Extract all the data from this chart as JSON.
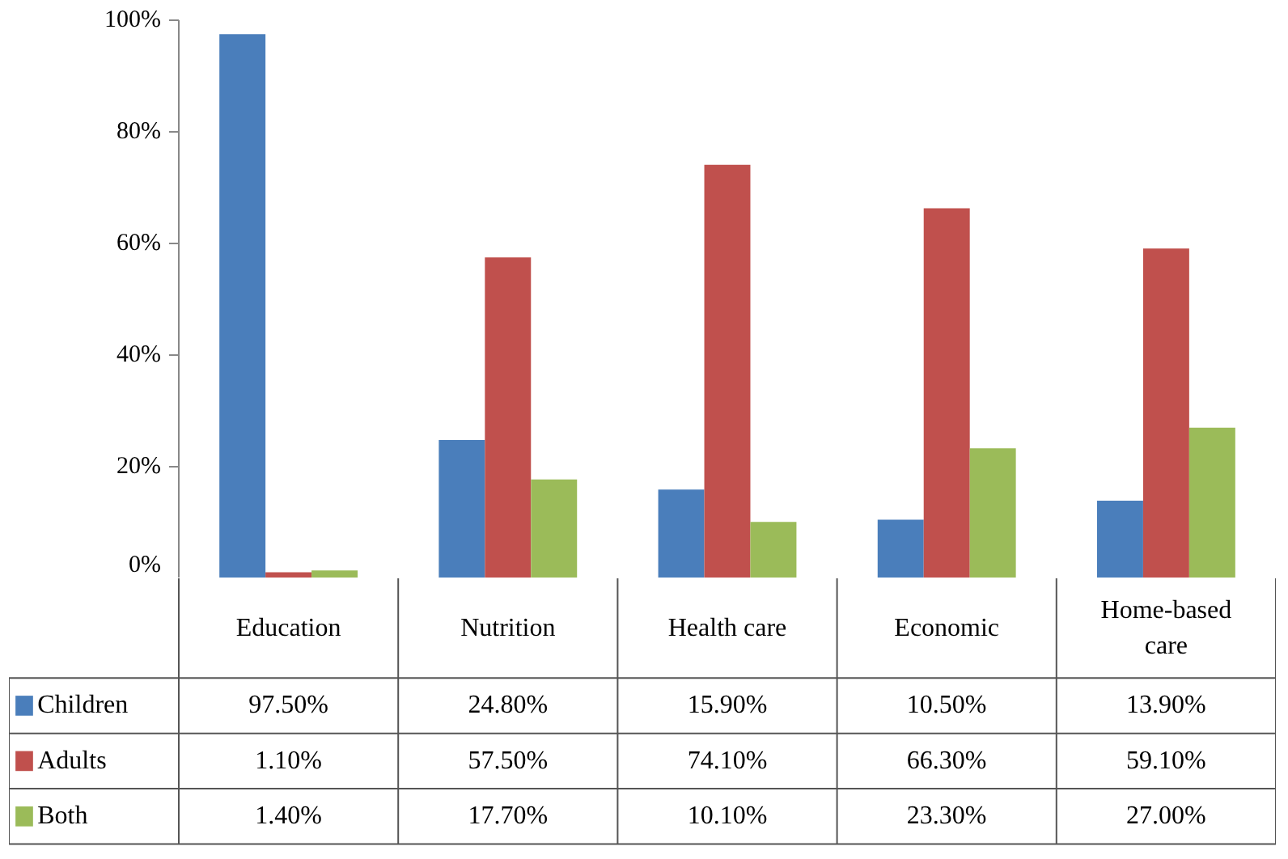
{
  "chart_data": {
    "type": "bar",
    "categories": [
      "Education",
      "Nutrition",
      "Health care",
      "Economic",
      "Home-based care"
    ],
    "ylim": [
      0,
      100
    ],
    "yticks": [
      {
        "value": 0,
        "label": "0%"
      },
      {
        "value": 20,
        "label": "20%"
      },
      {
        "value": 40,
        "label": "40%"
      },
      {
        "value": 60,
        "label": "60%"
      },
      {
        "value": 80,
        "label": "80%"
      },
      {
        "value": 100,
        "label": "100%"
      }
    ],
    "legend": "bottom",
    "series": [
      {
        "name": "Children",
        "color": "#4a7ebb",
        "values": [
          97.5,
          24.8,
          15.9,
          10.5,
          13.9
        ],
        "value_labels": [
          "97.50%",
          "24.80%",
          "15.90%",
          "10.50%",
          "13.90%"
        ]
      },
      {
        "name": "Adults",
        "color": "#c0504d",
        "values": [
          1.1,
          57.5,
          74.1,
          66.3,
          59.1
        ],
        "value_labels": [
          "1.10%",
          "57.50%",
          "74.10%",
          "66.30%",
          "59.10%"
        ]
      },
      {
        "name": "Both",
        "color": "#9bbb59",
        "values": [
          1.4,
          17.7,
          10.1,
          23.3,
          27.0
        ],
        "value_labels": [
          "1.40%",
          "17.70%",
          "10.10%",
          "23.30%",
          "27.00%"
        ]
      }
    ]
  }
}
